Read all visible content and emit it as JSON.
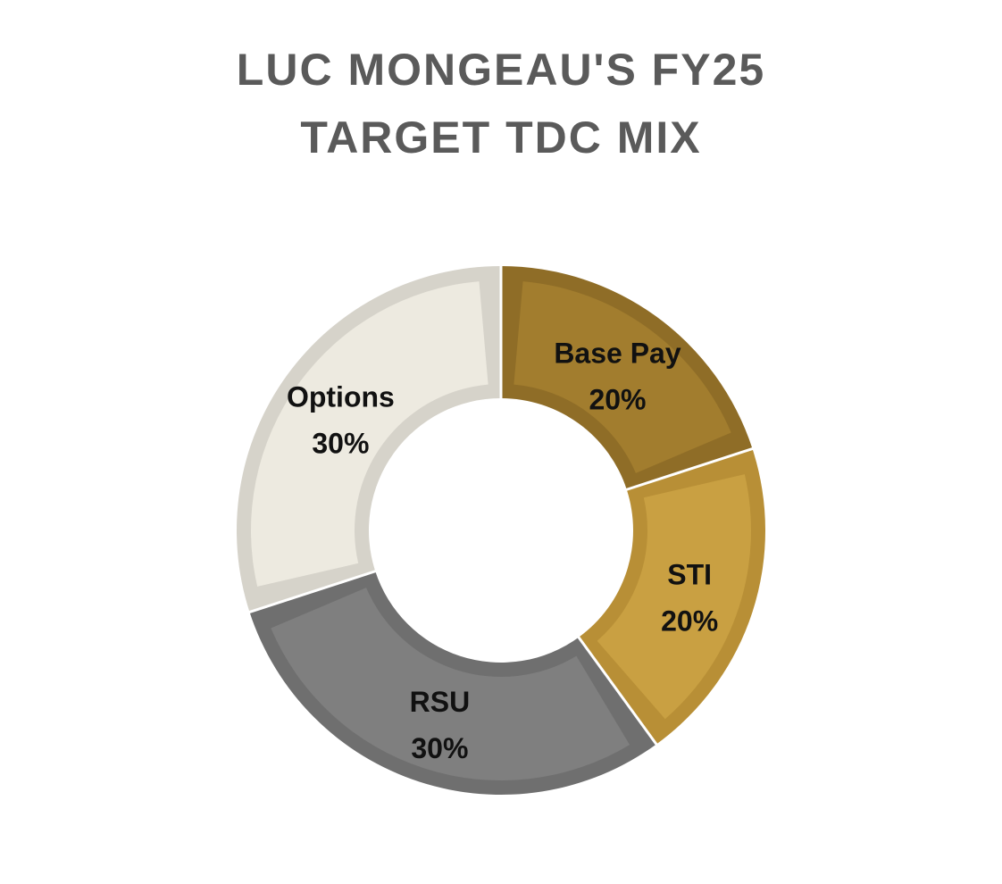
{
  "chart_data": {
    "type": "pie",
    "subtype": "donut",
    "title_lines": [
      "LUC MONGEAU'S FY25",
      "TARGET TDC MIX"
    ],
    "slices": [
      {
        "label": "Base Pay",
        "value": 20,
        "display": "20%",
        "fill": "#A27D2E",
        "stroke": "#8F6D27"
      },
      {
        "label": "STI",
        "value": 20,
        "display": "20%",
        "fill": "#C9A042",
        "stroke": "#B88F36"
      },
      {
        "label": "RSU",
        "value": 30,
        "display": "30%",
        "fill": "#7F7F7F",
        "stroke": "#6F6F6F"
      },
      {
        "label": "Options",
        "value": 30,
        "display": "30%",
        "fill": "#EDEAE0",
        "stroke": "#D6D3CA"
      }
    ],
    "start_angle_deg": 0,
    "direction": "clockwise",
    "legend": "none"
  }
}
